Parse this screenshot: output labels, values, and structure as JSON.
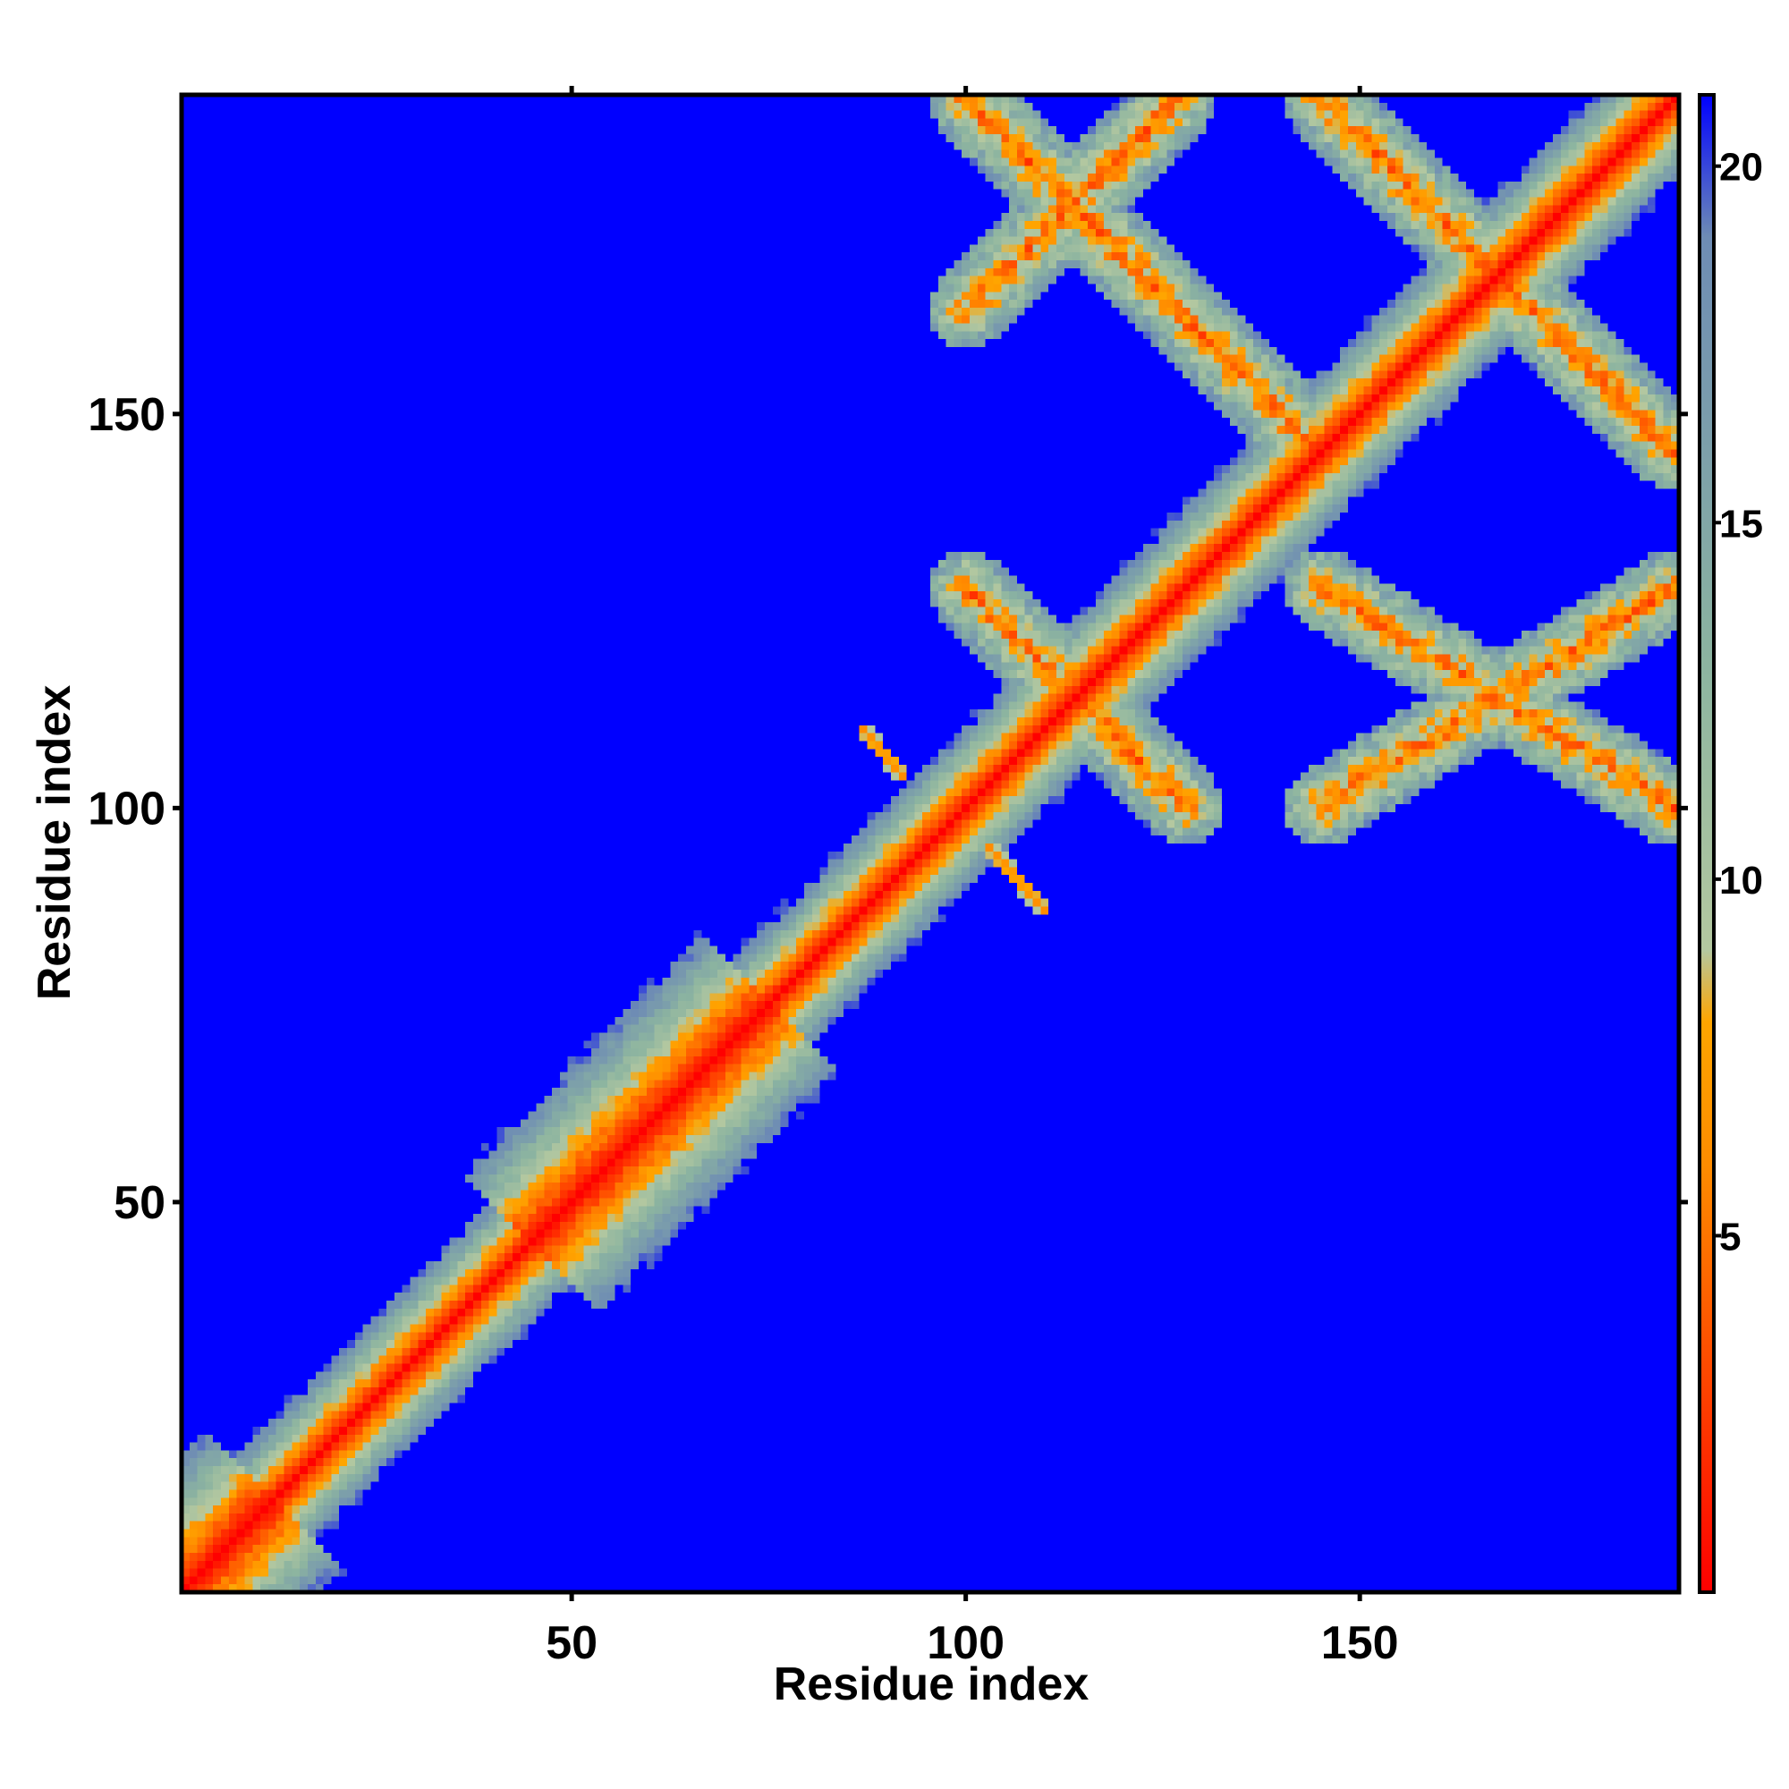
{
  "chart_data": {
    "type": "heatmap",
    "title": "",
    "xlabel": "Residue index",
    "ylabel": "Residue index",
    "x_range": [
      1,
      190
    ],
    "y_range": [
      1,
      190
    ],
    "x_ticks": [
      50,
      100,
      150
    ],
    "y_ticks": [
      50,
      100,
      150
    ],
    "x_tick_labels": [
      "50",
      "100",
      "150"
    ],
    "y_tick_labels": [
      "50",
      "100",
      "150"
    ],
    "colorbar": {
      "range": [
        0,
        21
      ],
      "ticks": [
        5,
        10,
        15,
        20
      ],
      "tick_labels": [
        "5",
        "10",
        "15",
        "20"
      ],
      "colors": [
        {
          "value": 0,
          "color": "#ff0000"
        },
        {
          "value": 6,
          "color": "#ff8c00"
        },
        {
          "value": 8,
          "color": "#ffa500"
        },
        {
          "value": 9,
          "color": "#b4c8a0"
        },
        {
          "value": 13,
          "color": "#8cb4a0"
        },
        {
          "value": 19,
          "color": "#6e8cb4"
        },
        {
          "value": 21,
          "color": "#0000ff"
        }
      ]
    },
    "background_color": "#0000ff",
    "grid": false,
    "structure": {
      "diagonal": {
        "from": 1,
        "to": 190
      },
      "helix_band_segments": [
        [
          1,
          12
        ],
        [
          45,
          75
        ]
      ],
      "antidiagonal_bands": [
        {
          "from": [
            100,
            128
          ],
          "to": [
            128,
            100
          ]
        },
        {
          "from": [
            145,
            190
          ],
          "to": [
            190,
            145
          ]
        },
        {
          "from": [
            100,
            190
          ],
          "to": [
            127,
            163
          ]
        },
        {
          "from": [
            127,
            190
          ],
          "to": [
            100,
            163
          ]
        },
        {
          "from": [
            127,
            163
          ],
          "to": [
            145,
            145
          ]
        },
        {
          "from": [
            145,
            128
          ],
          "to": [
            190,
            100
          ]
        },
        {
          "from": [
            145,
            100
          ],
          "to": [
            190,
            128
          ]
        }
      ],
      "short_contacts": [
        {
          "from": [
            87,
            110
          ],
          "to": [
            92,
            104
          ]
        },
        {
          "from": [
            103,
            95
          ],
          "to": [
            110,
            87
          ]
        }
      ]
    }
  }
}
